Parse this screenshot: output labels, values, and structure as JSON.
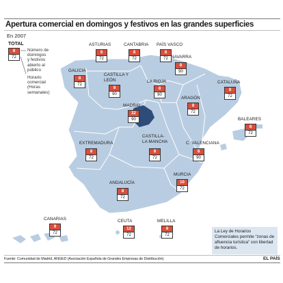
{
  "header": {
    "title": "Apertura comercial en domingos y festivos en las grandes superficies",
    "year": "En 2007"
  },
  "legend": {
    "total_label": "TOTAL",
    "top_value": "8",
    "bottom_value": "72",
    "top_desc": [
      "Número de",
      "domingos",
      "y festivos",
      "abierto al",
      "público"
    ],
    "bottom_desc": [
      "Horario",
      "comercial",
      "(Horas",
      "semanales)"
    ]
  },
  "regions": [
    {
      "name": "ASTURIAS",
      "days": "8",
      "hours": "72"
    },
    {
      "name": "CANTABRIA",
      "days": "8",
      "hours": "72"
    },
    {
      "name": "PAÍS VASCO",
      "days": "8",
      "hours": "72"
    },
    {
      "name": "NAVARRA",
      "days": "8",
      "hours": "90"
    },
    {
      "name": "GALICIA",
      "days": "8",
      "hours": "72"
    },
    {
      "name": "CASTILLA Y LEÓN",
      "days": "8",
      "hours": "90"
    },
    {
      "name": "LA RIOJA",
      "days": "8",
      "hours": "90"
    },
    {
      "name": "CATALUÑA",
      "days": "8",
      "hours": "72"
    },
    {
      "name": "ARAGÓN",
      "days": "8",
      "hours": "72"
    },
    {
      "name": "MADRID",
      "days": "22",
      "hours": "90"
    },
    {
      "name": "BALEARES",
      "days": "8",
      "hours": "72"
    },
    {
      "name": "EXTREMADURA",
      "days": "8",
      "hours": "72"
    },
    {
      "name": "CASTILLA-LA MANCHA",
      "days": "8",
      "hours": "72"
    },
    {
      "name": "C. VALENCIANA",
      "days": "8",
      "hours": "90"
    },
    {
      "name": "MURCIA",
      "days": "10",
      "hours": "72"
    },
    {
      "name": "ANDALUCÍA",
      "days": "8",
      "hours": "72"
    },
    {
      "name": "CANARIAS",
      "days": "9",
      "hours": "72"
    },
    {
      "name": "CEUTA",
      "days": "12",
      "hours": "72"
    },
    {
      "name": "MELILLA",
      "days": "8",
      "hours": "72"
    }
  ],
  "note": "La Ley de Horarios Comerciales permite “zonas de afluencia turística” con libertad de horarios.",
  "source": "Fuente: Comunidad de Madrid, ANGED (Asociación Española de Grandes Empresas de Distribución).",
  "brand": "EL PAÍS",
  "colors": {
    "land": "#b9cde2",
    "madrid": "#2e4c7a",
    "badge_top": "#d94f3d",
    "note_bg": "#dbe6f1"
  }
}
